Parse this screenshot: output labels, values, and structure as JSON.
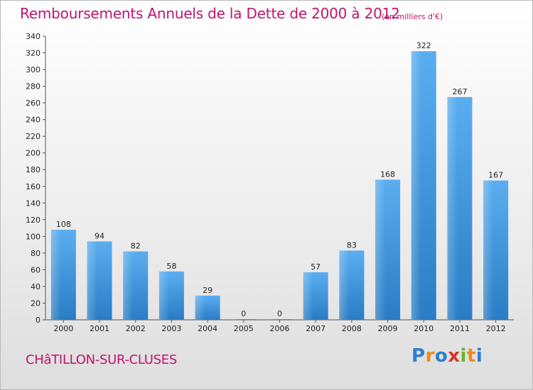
{
  "chart_data": {
    "type": "bar",
    "title": "Remboursements Annuels de la Dette de 2000 à 2012",
    "subtitle": "(en milliers d'€)",
    "categories": [
      "2000",
      "2001",
      "2002",
      "2003",
      "2004",
      "2005",
      "2006",
      "2007",
      "2008",
      "2009",
      "2010",
      "2011",
      "2012"
    ],
    "values": [
      108,
      94,
      82,
      58,
      29,
      0,
      0,
      57,
      83,
      168,
      322,
      267,
      167
    ],
    "ylim": [
      0,
      340
    ],
    "yticks": [
      0,
      20,
      40,
      60,
      80,
      100,
      120,
      140,
      160,
      180,
      200,
      220,
      240,
      260,
      280,
      300,
      320,
      340
    ],
    "grid": false,
    "bar_color": "#3a8fd6"
  },
  "footer": {
    "city": "CHâTILLON-SUR-CLUSES"
  },
  "logo": {
    "text": "Proxiti",
    "letters": [
      {
        "ch": "P",
        "color": "#2a7fd0"
      },
      {
        "ch": "r",
        "color": "#f08a1c"
      },
      {
        "ch": "o",
        "color": "#2a7fd0"
      },
      {
        "ch": "x",
        "color": "#d8322a"
      },
      {
        "ch": "i",
        "color": "#6ab42d"
      },
      {
        "ch": "t",
        "color": "#f08a1c"
      },
      {
        "ch": "i",
        "color": "#2a7fd0"
      }
    ]
  }
}
